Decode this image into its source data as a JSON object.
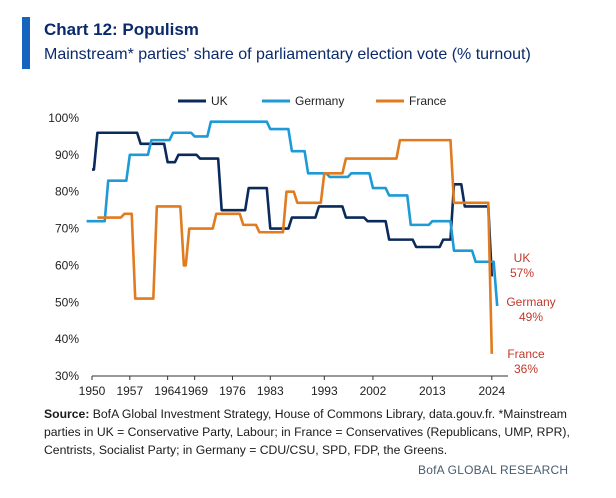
{
  "header": {
    "title": "Chart 12: Populism",
    "subtitle": "Mainstream* parties' share of parliamentary election vote (% turnout)"
  },
  "source": {
    "label": "Source:",
    "text": " BofA Global Investment Strategy, House of Commons Library, data.gouv.fr. *Mainstream parties in UK = Conservative Party, Labour; in France = Conservatives (Republicans, UMP, RPR), Centrists, Socialist Party; in Germany = CDU/CSU, SPD, FDP, the Greens."
  },
  "credit": "BofA GLOBAL RESEARCH",
  "chart_data": {
    "type": "line",
    "title": "",
    "xlabel": "",
    "ylabel": "",
    "xlim": [
      1950,
      2027
    ],
    "ylim": [
      30,
      100
    ],
    "x_ticks": [
      1950,
      1957,
      1964,
      1969,
      1976,
      1983,
      1993,
      2002,
      2013,
      2024
    ],
    "x_tick_labels": [
      "1950",
      "1957",
      "1964",
      "1969",
      "1976",
      "1983",
      "1993",
      "2002",
      "2013",
      "2024"
    ],
    "y_ticks": [
      30,
      40,
      50,
      60,
      70,
      80,
      90,
      100
    ],
    "y_tick_labels": [
      "30%",
      "40%",
      "50%",
      "60%",
      "70%",
      "80%",
      "90%",
      "100%"
    ],
    "grid": false,
    "legend_position": "top",
    "series": [
      {
        "name": "UK",
        "color": "#0b2a5c",
        "end_label": "UK",
        "end_value_label": "57%",
        "label_color": "#c0392b",
        "x": [
          1950,
          1951,
          1955,
          1959,
          1964,
          1966,
          1970,
          1974,
          1974.8,
          1979,
          1983,
          1987,
          1992,
          1997,
          2001,
          2005,
          2010,
          2015,
          2017,
          2019,
          2024
        ],
        "y": [
          86,
          96,
          96,
          93,
          88,
          90,
          89,
          75,
          75,
          81,
          70,
          73,
          76,
          73,
          72,
          67,
          65,
          67,
          82,
          76,
          57
        ]
      },
      {
        "name": "Germany",
        "color": "#1e9ad6",
        "end_label": "Germany",
        "end_value_label": "49%",
        "label_color": "#c0392b",
        "x": [
          1949,
          1953,
          1957,
          1961,
          1965,
          1969,
          1972,
          1976,
          1980,
          1983,
          1987,
          1990,
          1994,
          1998,
          2002,
          2005,
          2009,
          2013,
          2017,
          2021,
          2025
        ],
        "y": [
          72,
          83,
          90,
          94,
          96,
          95,
          99,
          99,
          99,
          97,
          91,
          85,
          84,
          85,
          81,
          79,
          71,
          72,
          64,
          61,
          49
        ]
      },
      {
        "name": "France",
        "color": "#e07b1f",
        "end_label": "France",
        "end_value_label": "36%",
        "label_color": "#c0392b",
        "x": [
          1951,
          1956,
          1958,
          1962,
          1967,
          1968,
          1973,
          1978,
          1981,
          1986,
          1988,
          1993,
          1997,
          2002,
          2007,
          2012,
          2017,
          2022,
          2024
        ],
        "y": [
          73,
          74,
          51,
          76,
          60,
          70,
          74,
          71,
          69,
          80,
          77,
          85,
          89,
          89,
          94,
          94,
          77,
          77,
          36
        ]
      }
    ]
  }
}
